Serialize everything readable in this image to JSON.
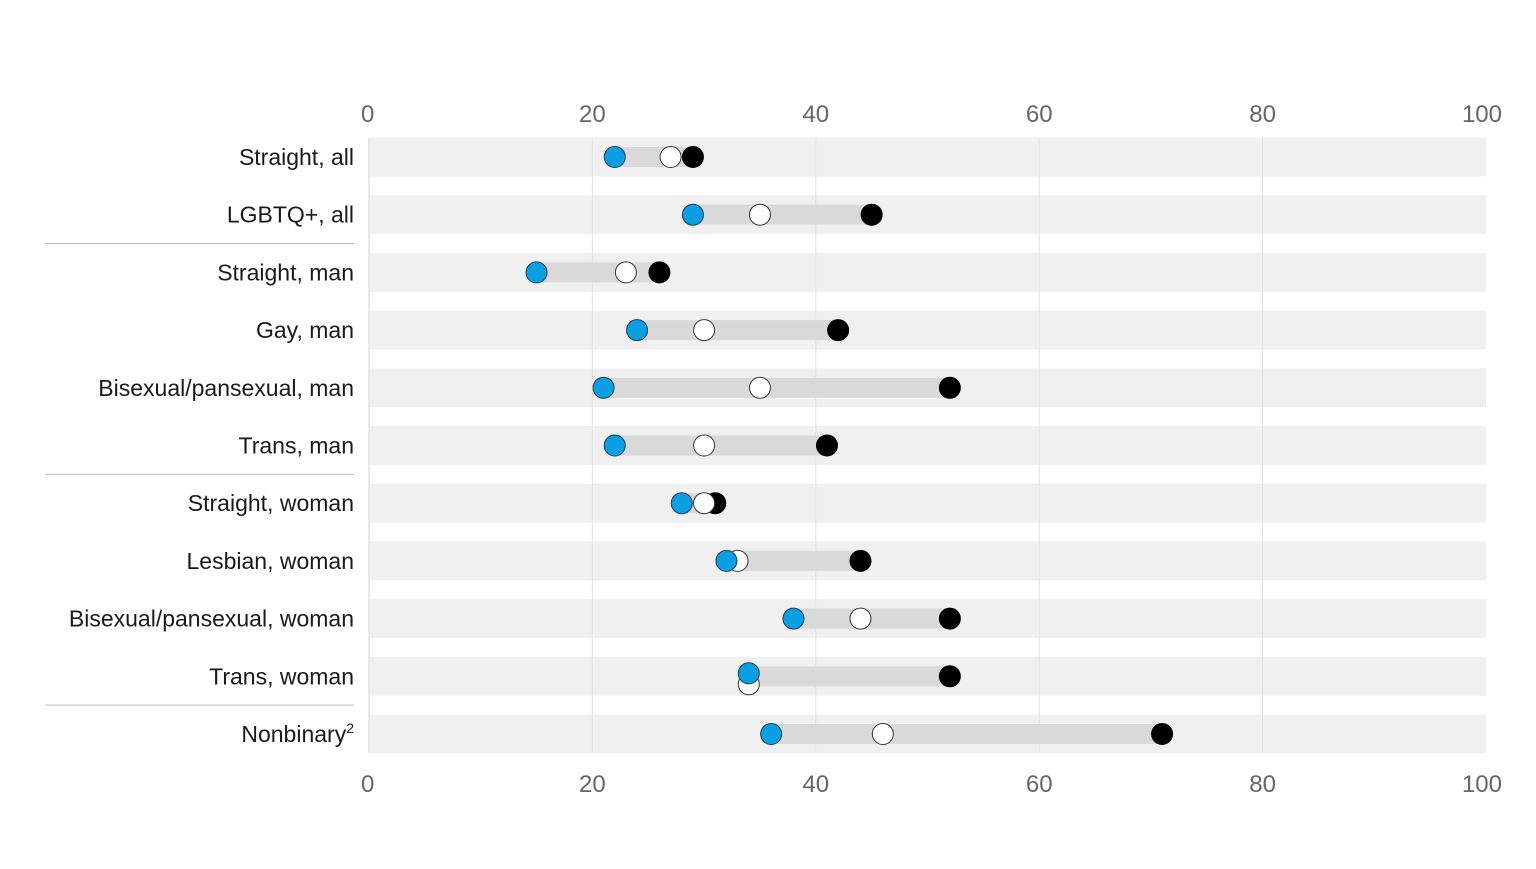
{
  "chart_data": {
    "type": "dot-range",
    "title": "",
    "xlabel": "",
    "ylabel": "",
    "xlim": [
      0,
      100
    ],
    "ticks": [
      "0",
      "20",
      "40",
      "60",
      "80",
      "100"
    ],
    "tick_values": [
      0,
      20,
      40,
      60,
      80,
      100
    ],
    "grid": true,
    "colors": {
      "blue_marker": "#0a9fe3",
      "white_marker": "#ffffff",
      "black_marker": "#000000",
      "row_band": "#f0f0f0",
      "range_bar": "#d9d9d9",
      "gridline": "#e2e2e2",
      "separator": "#bdbdbd",
      "label_text": "#1a1a1a",
      "tick_text": "#666666"
    },
    "series": [
      {
        "marker": "blue"
      },
      {
        "marker": "white"
      },
      {
        "marker": "black"
      }
    ],
    "groups_separated_after": [
      1,
      5,
      9
    ],
    "rows": [
      {
        "label": "Straight, all",
        "sup": "",
        "blue": 22,
        "white": 27,
        "black": 29
      },
      {
        "label": "LGBTQ+, all",
        "sup": "",
        "blue": 29,
        "white": 35,
        "black": 45
      },
      {
        "label": "Straight, man",
        "sup": "",
        "blue": 15,
        "white": 23,
        "black": 26
      },
      {
        "label": "Gay, man",
        "sup": "",
        "blue": 24,
        "white": 30,
        "black": 42
      },
      {
        "label": "Bisexual/pansexual, man",
        "sup": "",
        "blue": 21,
        "white": 35,
        "black": 52
      },
      {
        "label": "Trans, man",
        "sup": "",
        "blue": 22,
        "white": 30,
        "black": 41
      },
      {
        "label": "Straight, woman",
        "sup": "",
        "blue": 28,
        "white": 30,
        "black": 31
      },
      {
        "label": "Lesbian, woman",
        "sup": "",
        "blue": 32,
        "white": 33,
        "black": 44
      },
      {
        "label": "Bisexual/pansexual, woman",
        "sup": "",
        "blue": 38,
        "white": 44,
        "black": 52
      },
      {
        "label": "Trans, woman",
        "sup": "",
        "blue": 34,
        "white": 34,
        "black": 52
      },
      {
        "label": "Nonbinary",
        "sup": "2",
        "blue": 36,
        "white": 46,
        "black": 71
      }
    ]
  }
}
